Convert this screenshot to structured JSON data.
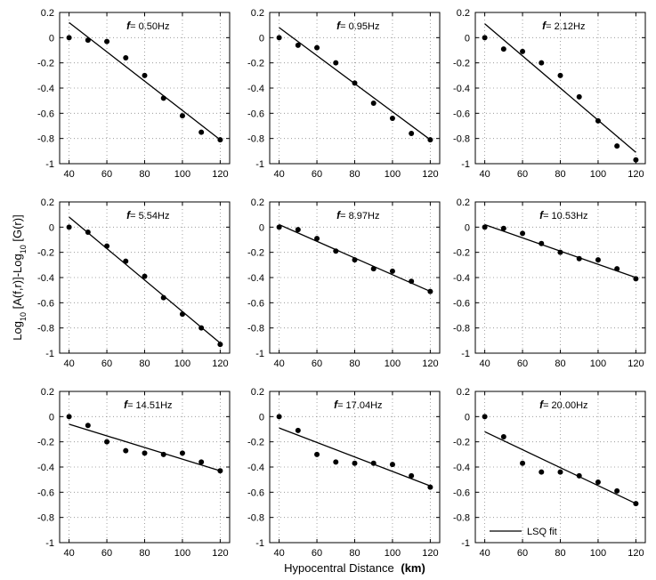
{
  "chart_data": {
    "type": "scatter",
    "layout": "3x3 grid",
    "xlabel": "Hypocentral Distance",
    "xlabel_unit": "(km)",
    "ylabel_parts": [
      "Log",
      "10",
      " [A(f,r)]-Log",
      "10",
      " [G(r)]"
    ],
    "xlim": [
      35,
      125
    ],
    "ylim": [
      -1,
      0.2
    ],
    "xticks": [
      40,
      60,
      80,
      100,
      120
    ],
    "yticks": [
      0.2,
      0,
      -0.2,
      -0.4,
      -0.6,
      -0.8,
      -1
    ],
    "ytick_labels": [
      "0.2",
      "0",
      "-0.2",
      "-0.4",
      "-0.6",
      "-0.8",
      "-1"
    ],
    "grid": "dotted",
    "freq_symbol": "f",
    "x": [
      40,
      50,
      60,
      70,
      80,
      90,
      100,
      110,
      120
    ],
    "legend": {
      "label": "LSQ fit",
      "panel": 8,
      "position": "bottom-center"
    },
    "panels": [
      {
        "freq_label": "0.50Hz",
        "y": [
          0,
          -0.02,
          -0.03,
          -0.16,
          -0.3,
          -0.48,
          -0.62,
          -0.75,
          -0.81
        ],
        "fit": [
          0.12,
          -0.81
        ]
      },
      {
        "freq_label": "0.95Hz",
        "y": [
          0,
          -0.06,
          -0.08,
          -0.2,
          -0.36,
          -0.52,
          -0.64,
          -0.76,
          -0.81
        ],
        "fit": [
          0.08,
          -0.81
        ]
      },
      {
        "freq_label": "2.12Hz",
        "y": [
          0,
          -0.09,
          -0.11,
          -0.2,
          -0.3,
          -0.47,
          -0.66,
          -0.86,
          -0.97
        ],
        "fit": [
          0.11,
          -0.91
        ]
      },
      {
        "freq_label": "5.54Hz",
        "y": [
          0,
          -0.04,
          -0.15,
          -0.27,
          -0.39,
          -0.56,
          -0.69,
          -0.8,
          -0.93
        ],
        "fit": [
          0.08,
          -0.92
        ]
      },
      {
        "freq_label": "8.97Hz",
        "y": [
          0,
          -0.02,
          -0.09,
          -0.19,
          -0.26,
          -0.33,
          -0.35,
          -0.43,
          -0.51
        ],
        "fit": [
          0.02,
          -0.51
        ]
      },
      {
        "freq_label": "10.53Hz",
        "y": [
          0,
          -0.01,
          -0.05,
          -0.13,
          -0.2,
          -0.25,
          -0.26,
          -0.33,
          -0.41
        ],
        "fit": [
          0.02,
          -0.4
        ]
      },
      {
        "freq_label": "14.51Hz",
        "y": [
          0,
          -0.07,
          -0.2,
          -0.27,
          -0.29,
          -0.3,
          -0.29,
          -0.36,
          -0.43
        ],
        "fit": [
          -0.06,
          -0.43
        ]
      },
      {
        "freq_label": "17.04Hz",
        "y": [
          0,
          -0.11,
          -0.3,
          -0.36,
          -0.37,
          -0.37,
          -0.38,
          -0.47,
          -0.56
        ],
        "fit": [
          -0.09,
          -0.55
        ]
      },
      {
        "freq_label": "20.00Hz",
        "y": [
          0,
          -0.16,
          -0.37,
          -0.44,
          -0.44,
          -0.47,
          -0.52,
          -0.59,
          -0.69
        ],
        "fit": [
          -0.12,
          -0.69
        ]
      }
    ]
  }
}
